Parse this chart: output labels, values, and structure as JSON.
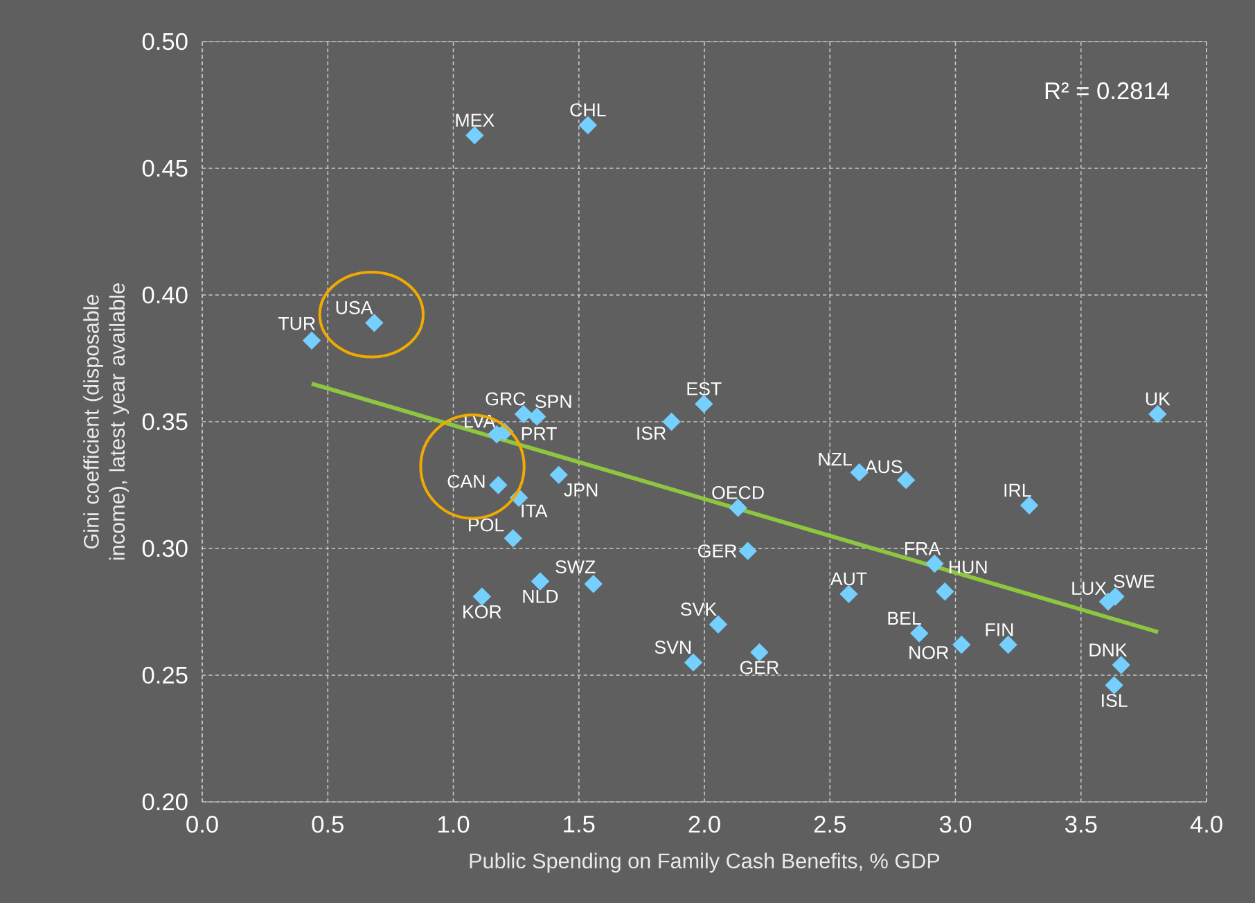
{
  "chart_data": {
    "type": "scatter",
    "xlabel": "Public Spending on Family Cash Benefits, % GDP",
    "ylabel": "Gini coefficient (disposable income), latest year available",
    "xlim": [
      0,
      4
    ],
    "ylim": [
      0.2,
      0.5
    ],
    "xticks": [
      {
        "value": 0,
        "label": "0.0"
      },
      {
        "value": 0.5,
        "label": "0.5"
      },
      {
        "value": 1,
        "label": "1.0"
      },
      {
        "value": 1.5,
        "label": "1.5"
      },
      {
        "value": 2,
        "label": "2.0"
      },
      {
        "value": 2.5,
        "label": "2.5"
      },
      {
        "value": 3,
        "label": "3.0"
      },
      {
        "value": 3.5,
        "label": "3.5"
      },
      {
        "value": 4,
        "label": "4.0"
      }
    ],
    "yticks": [
      {
        "value": 0.2,
        "label": "0.20"
      },
      {
        "value": 0.25,
        "label": "0.25"
      },
      {
        "value": 0.3,
        "label": "0.30"
      },
      {
        "value": 0.35,
        "label": "0.35"
      },
      {
        "value": 0.4,
        "label": "0.40"
      },
      {
        "value": 0.45,
        "label": "0.45"
      },
      {
        "value": 0.5,
        "label": "0.50"
      }
    ],
    "grid": true,
    "series": [
      {
        "color": "#75d0ff",
        "marker": "diamond",
        "x": [
          1.085,
          1.536,
          0.436,
          0.685,
          1.28,
          1.333,
          1.173,
          1.204,
          1.998,
          1.869,
          1.179,
          1.261,
          1.42,
          1.238,
          1.346,
          1.558,
          1.114,
          1.956,
          2.055,
          2.219,
          2.173,
          2.134,
          2.617,
          2.803,
          3.294,
          2.917,
          2.958,
          2.575,
          2.856,
          3.024,
          3.21,
          3.608,
          3.637,
          3.66,
          3.632,
          3.805
        ],
        "values": [
          0.463,
          0.467,
          0.382,
          0.389,
          0.353,
          0.352,
          0.345,
          0.346,
          0.357,
          0.35,
          0.325,
          0.32,
          0.329,
          0.304,
          0.287,
          0.286,
          0.281,
          0.255,
          0.27,
          0.259,
          0.299,
          0.316,
          0.33,
          0.327,
          0.317,
          0.294,
          0.283,
          0.282,
          0.2665,
          0.262,
          0.262,
          0.279,
          0.281,
          0.254,
          0.246,
          0.353
        ]
      },
      {
        "type": "line",
        "marker": "none",
        "color": "#8dc63f",
        "x": [
          0.436,
          3.807
        ],
        "values": [
          0.365,
          0.267
        ]
      }
    ],
    "annotations": [
      {
        "text": "MEX",
        "x": 1.085,
        "y": 0.463
      },
      {
        "text": "CHL",
        "x": 1.536,
        "y": 0.467
      },
      {
        "text": "TUR",
        "x": 0.436,
        "y": 0.382
      },
      {
        "text": "USA",
        "x": 0.685,
        "y": 0.389
      },
      {
        "text": "GRC",
        "x": 1.28,
        "y": 0.353
      },
      {
        "text": "SPN",
        "x": 1.333,
        "y": 0.352
      },
      {
        "text": "LVA",
        "x": 1.173,
        "y": 0.345
      },
      {
        "text": "PRT",
        "x": 1.204,
        "y": 0.346
      },
      {
        "text": "EST",
        "x": 1.998,
        "y": 0.357
      },
      {
        "text": "ISR",
        "x": 1.869,
        "y": 0.35
      },
      {
        "text": "CAN",
        "x": 1.179,
        "y": 0.325
      },
      {
        "text": "ITA",
        "x": 1.261,
        "y": 0.32
      },
      {
        "text": "JPN",
        "x": 1.42,
        "y": 0.329
      },
      {
        "text": "POL",
        "x": 1.238,
        "y": 0.304
      },
      {
        "text": "NLD",
        "x": 1.346,
        "y": 0.287
      },
      {
        "text": "SWZ",
        "x": 1.558,
        "y": 0.286
      },
      {
        "text": "KOR",
        "x": 1.114,
        "y": 0.281
      },
      {
        "text": "SVN",
        "x": 1.956,
        "y": 0.255
      },
      {
        "text": "SVK",
        "x": 2.055,
        "y": 0.27
      },
      {
        "text": "GER",
        "x": 2.219,
        "y": 0.259
      },
      {
        "text": "GER",
        "x": 2.173,
        "y": 0.299
      },
      {
        "text": "OECD",
        "x": 2.134,
        "y": 0.316
      },
      {
        "text": "NZL",
        "x": 2.617,
        "y": 0.33
      },
      {
        "text": "AUS",
        "x": 2.803,
        "y": 0.327
      },
      {
        "text": "IRL",
        "x": 3.294,
        "y": 0.317
      },
      {
        "text": "FRA",
        "x": 2.917,
        "y": 0.294
      },
      {
        "text": "HUN",
        "x": 2.958,
        "y": 0.283
      },
      {
        "text": "AUT",
        "x": 2.575,
        "y": 0.282
      },
      {
        "text": "BEL",
        "x": 2.856,
        "y": 0.2665
      },
      {
        "text": "NOR",
        "x": 3.024,
        "y": 0.262
      },
      {
        "text": "FIN",
        "x": 3.21,
        "y": 0.262
      },
      {
        "text": "LUX",
        "x": 3.608,
        "y": 0.279
      },
      {
        "text": "SWE",
        "x": 3.637,
        "y": 0.281
      },
      {
        "text": "DNK",
        "x": 3.66,
        "y": 0.254
      },
      {
        "text": "ISL",
        "x": 3.632,
        "y": 0.246
      },
      {
        "text": "UK",
        "x": 3.805,
        "y": 0.353
      },
      "R² = 0.2814"
    ]
  }
}
